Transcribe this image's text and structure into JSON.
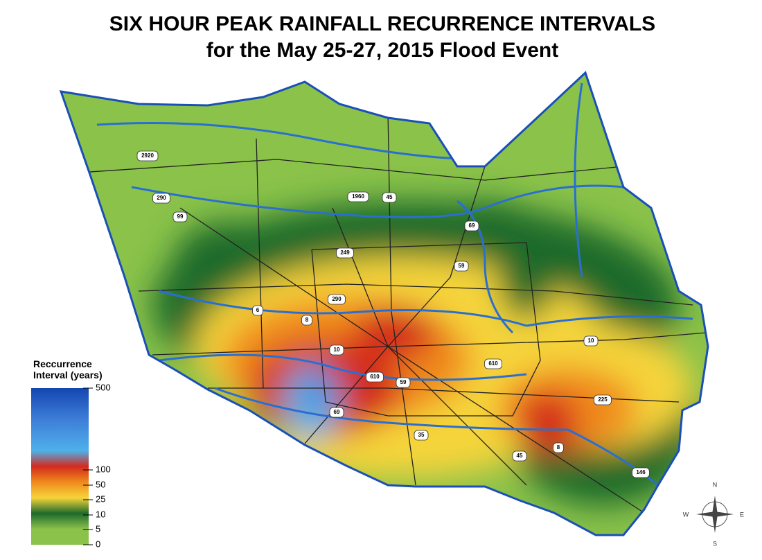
{
  "header": {
    "title": "SIX HOUR PEAK RAINFALL RECURRENCE INTERVALS",
    "subtitle": "for the May 25-27, 2015 Flood Event"
  },
  "legend": {
    "title": [
      "Reccurrence",
      "Interval (years)"
    ],
    "ticks": [
      0,
      5,
      10,
      25,
      50,
      100,
      500
    ]
  },
  "road_labels": [
    "2920",
    "290",
    "99",
    "1960",
    "45",
    "69",
    "249",
    "59",
    "290",
    "6",
    "8",
    "10",
    "610",
    "59",
    "69",
    "35",
    "45",
    "8",
    "225",
    "146",
    "10",
    "610"
  ],
  "compass": {
    "north": "N",
    "east": "E",
    "south": "S",
    "west": "W"
  }
}
